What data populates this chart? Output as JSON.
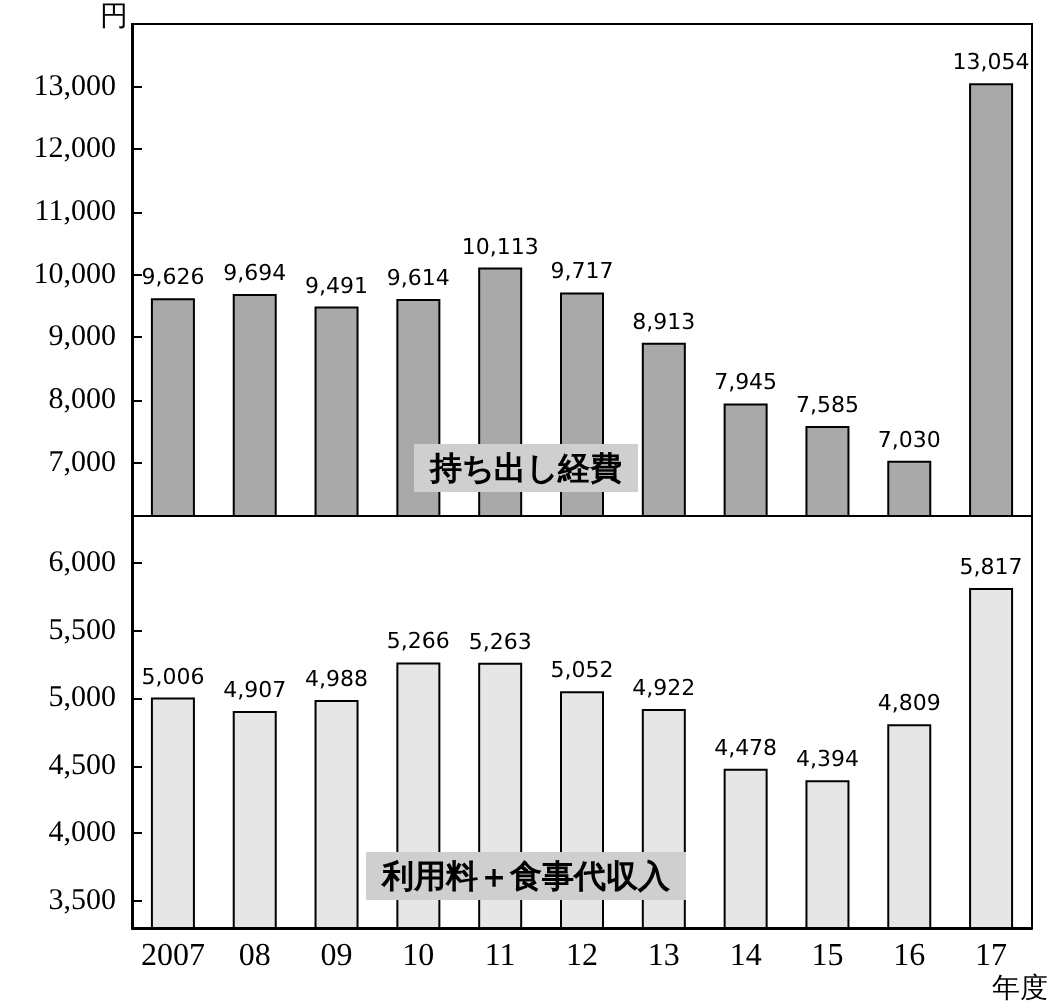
{
  "chart_data": [
    {
      "type": "bar",
      "ylabel": "円",
      "categories": [
        "2007",
        "08",
        "09",
        "10",
        "11",
        "12",
        "13",
        "14",
        "15",
        "16",
        "17"
      ],
      "values": [
        9626,
        9694,
        9491,
        9614,
        10113,
        9717,
        8913,
        7945,
        7585,
        7030,
        13054
      ],
      "color": "#a9a9a9",
      "data_labels": true,
      "value_labels": [
        "9,626",
        "9,694",
        "9,491",
        "9,614",
        "10,113",
        "9,717",
        "8,913",
        "7,945",
        "7,585",
        "7,030",
        "13,054"
      ],
      "ylim": [
        6150,
        14000
      ],
      "yticks": [
        {
          "value": 7000,
          "label": "7,000"
        },
        {
          "value": 8000,
          "label": "8,000"
        },
        {
          "value": 9000,
          "label": "9,000"
        },
        {
          "value": 10000,
          "label": "10,000"
        },
        {
          "value": 11000,
          "label": "11,000"
        },
        {
          "value": 12000,
          "label": "12,000"
        },
        {
          "value": 13000,
          "label": "13,000"
        }
      ],
      "tick_labels": "y",
      "annotations": [
        "持ち出し経費"
      ]
    },
    {
      "type": "bar",
      "xlabel": "年度",
      "categories": [
        "2007",
        "08",
        "09",
        "10",
        "11",
        "12",
        "13",
        "14",
        "15",
        "16",
        "17"
      ],
      "values": [
        5006,
        4907,
        4988,
        5266,
        5263,
        5052,
        4922,
        4478,
        4394,
        4809,
        5817
      ],
      "color": "#e6e6e6",
      "data_labels": true,
      "value_labels": [
        "5,006",
        "4,907",
        "4,988",
        "5,266",
        "5,263",
        "5,052",
        "4,922",
        "4,478",
        "4,394",
        "4,809",
        "5,817"
      ],
      "ylim": [
        3300,
        6350
      ],
      "yticks": [
        {
          "value": 3500,
          "label": "3,500"
        },
        {
          "value": 4000,
          "label": "4,000"
        },
        {
          "value": 4500,
          "label": "4,500"
        },
        {
          "value": 5000,
          "label": "5,000"
        },
        {
          "value": 5500,
          "label": "5,500"
        },
        {
          "value": 6000,
          "label": "6,000"
        }
      ],
      "annotations": [
        "利用料＋食事代収入"
      ]
    }
  ]
}
